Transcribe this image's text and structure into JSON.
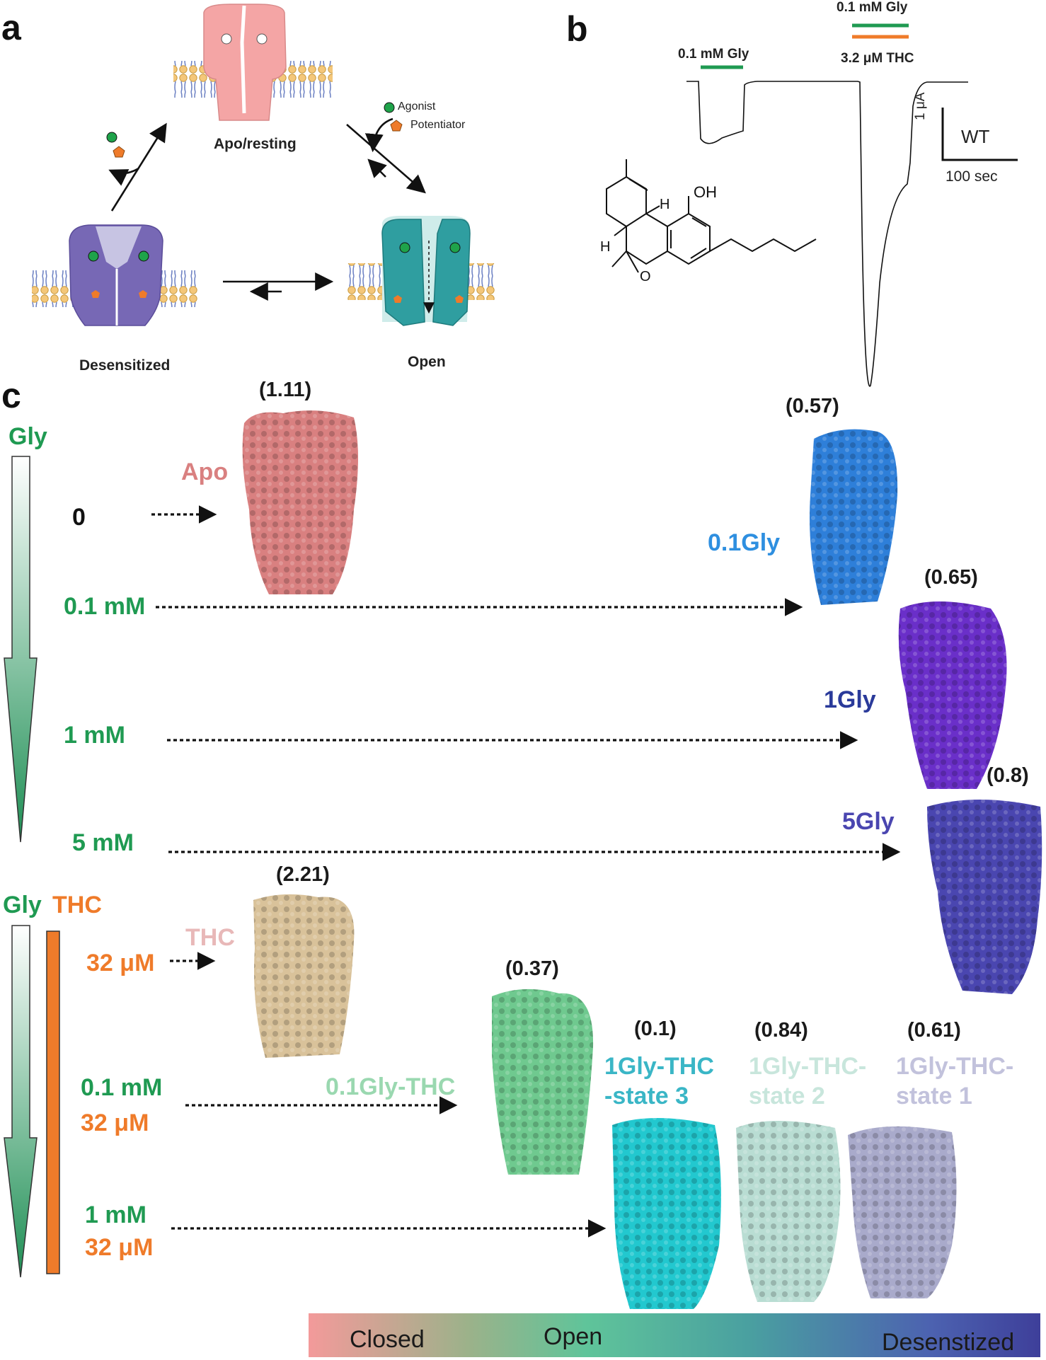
{
  "panel_a": {
    "letter": "a",
    "states": {
      "apo": "Apo/resting",
      "desensitized": "Desensitized",
      "open": "Open"
    },
    "legend": {
      "agonist": "Agonist",
      "potentiator": "Potentiator"
    }
  },
  "panel_b": {
    "letter": "b",
    "pulse1_label": "0.1 mM Gly",
    "pulse2_label_top": "0.1 mM Gly",
    "pulse2_label_bottom": "3.2 μM THC",
    "scale_current": "1 μA",
    "scale_time": "100 sec",
    "construct": "WT",
    "molecule_labels": {
      "oh": "OH",
      "h1": "H",
      "h2": "H",
      "o": "O"
    }
  },
  "panel_c": {
    "letter": "c",
    "gly_header": "Gly",
    "gly_thc_header_gly": "Gly",
    "gly_thc_header_thc": "THC",
    "rows_gly": [
      "0",
      "0.1 mM",
      "1 mM",
      "5 mM"
    ],
    "rows_thc": {
      "thc_only": "32 μM",
      "r2_gly": "0.1 mM",
      "r2_thc": "32 μM",
      "r3_gly": "1 mM",
      "r3_thc": "32 μM"
    },
    "maps": {
      "apo": {
        "label": "Apo",
        "ratio": "(1.11)"
      },
      "gly01": {
        "label": "0.1Gly",
        "ratio": "(0.57)"
      },
      "gly1": {
        "label": "1Gly",
        "ratio": "(0.65)"
      },
      "gly5": {
        "label": "5Gly",
        "ratio": "(0.8)"
      },
      "thc": {
        "label": "THC",
        "ratio": "(2.21)"
      },
      "gly01thc": {
        "label": "0.1Gly-THC",
        "ratio": "(0.37)"
      },
      "s3": {
        "label1": "1Gly-THC",
        "label2": "-state 3",
        "ratio": "(0.1)"
      },
      "s2": {
        "label1": "1Gly-THC-",
        "label2": "state 2",
        "ratio": "(0.84)"
      },
      "s1": {
        "label1": "1Gly-THC-",
        "label2": "state 1",
        "ratio": "(0.61)"
      }
    },
    "colorbar": {
      "closed": "Closed",
      "open": "Open",
      "desensitized": "Desenstized"
    },
    "colors": {
      "apo": "#d98080",
      "gly01": "#2e7fd9",
      "gly1": "#6a2fc9",
      "gly5": "#4a46b0",
      "thc": "#d9c29a",
      "gly01thc": "#6fc98f",
      "s3": "#22c8cf",
      "s2": "#b9ddd3",
      "s1": "#a9aacb",
      "gly_green": "#1f9a52",
      "thc_orange": "#ef7b2a"
    }
  }
}
